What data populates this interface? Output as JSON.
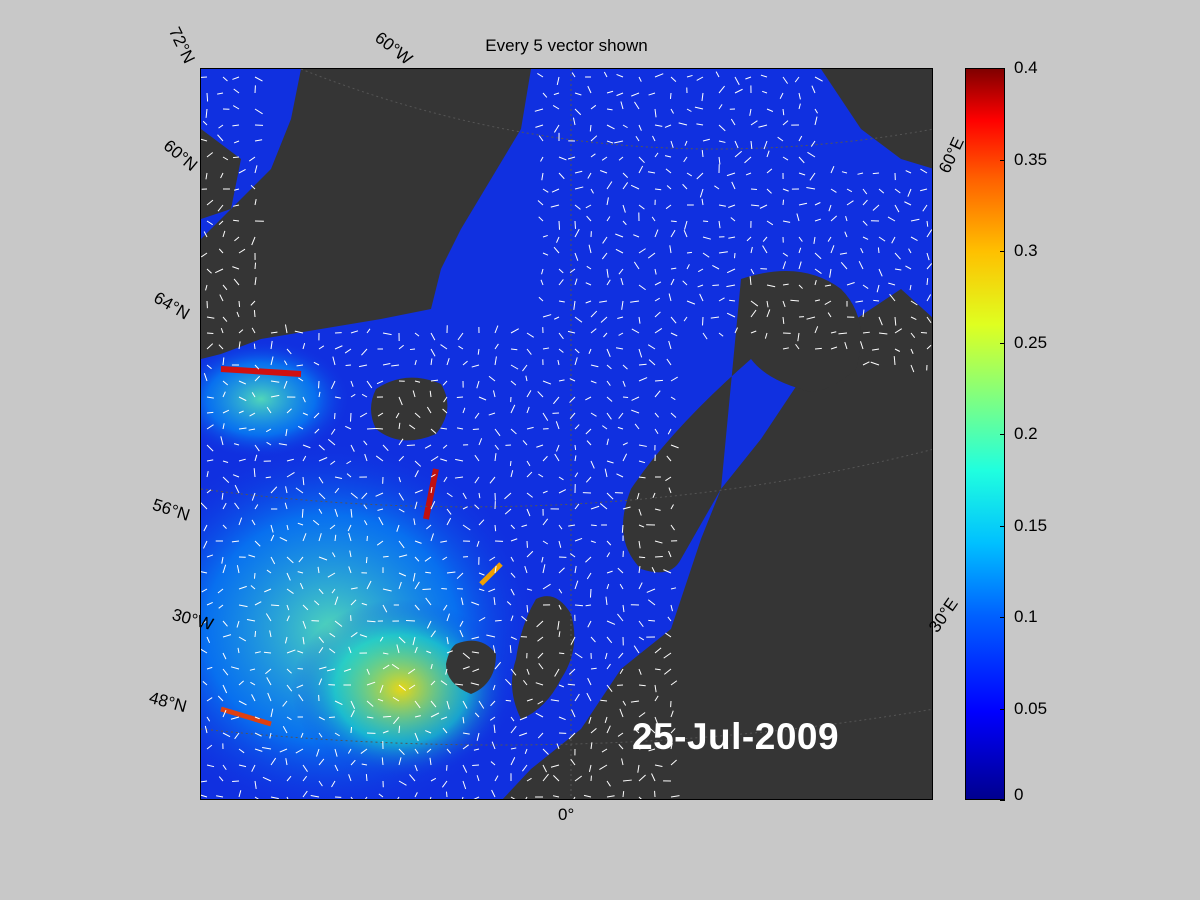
{
  "title": "Every 5 vector shown",
  "date": "25-Jul-2009",
  "map": {
    "latitude_labels": [
      "72°N",
      "60°N",
      "64°N",
      "56°N",
      "48°N"
    ],
    "longitude_labels": [
      "60°W",
      "30°W",
      "0°",
      "30°E",
      "60°E"
    ],
    "land_color": "#353535",
    "ocean_low_color": "#1030e0",
    "arrow_color": "#ffffff"
  },
  "colorbar": {
    "min": 0,
    "max": 0.4,
    "ticks": [
      "0.4",
      "0.35",
      "0.3",
      "0.25",
      "0.2",
      "0.15",
      "0.1",
      "0.05",
      "0"
    ],
    "colormap": "jet"
  }
}
